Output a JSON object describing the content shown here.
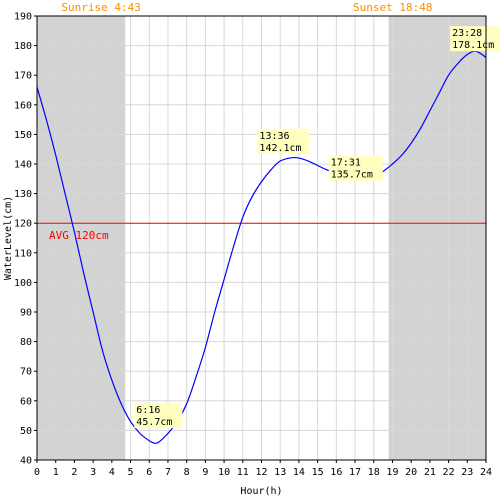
{
  "chart_data": {
    "type": "line",
    "title": "",
    "xlabel": "Hour(h)",
    "ylabel": "WaterLevel(cm)",
    "xlim": [
      0,
      24
    ],
    "ylim": [
      40,
      190
    ],
    "x_ticks": [
      0,
      1,
      2,
      3,
      4,
      5,
      6,
      7,
      8,
      9,
      10,
      11,
      12,
      13,
      14,
      15,
      16,
      17,
      18,
      19,
      20,
      21,
      22,
      23,
      24
    ],
    "y_ticks": [
      40,
      50,
      60,
      70,
      80,
      90,
      100,
      110,
      120,
      130,
      140,
      150,
      160,
      170,
      180,
      190
    ],
    "grid": true,
    "line_color": "#0000ff",
    "series": [
      {
        "x": [
          0,
          0.5,
          1,
          1.5,
          2,
          2.5,
          3,
          3.5,
          4,
          4.5,
          5,
          5.5,
          6,
          6.27,
          6.5,
          7,
          7.5,
          8,
          8.5,
          9,
          9.5,
          10,
          10.5,
          11,
          11.5,
          12,
          12.5,
          13,
          13.6,
          14,
          14.5,
          15,
          15.5,
          16,
          16.5,
          17,
          17.52,
          18,
          18.5,
          19,
          19.5,
          20,
          20.5,
          21,
          21.5,
          22,
          22.5,
          23,
          23.47,
          24
        ],
        "y": [
          166,
          155,
          143,
          130,
          117,
          103,
          90,
          77,
          67,
          59,
          53,
          49,
          46.5,
          45.7,
          46,
          49,
          53,
          59,
          68,
          78,
          90,
          101,
          112,
          122,
          129,
          134,
          138,
          141,
          142.1,
          142,
          141,
          139.5,
          138,
          137,
          136,
          135.8,
          135.7,
          136,
          137.5,
          140,
          143,
          147,
          152,
          158,
          164,
          170,
          174,
          177,
          178.1,
          176
        ]
      }
    ],
    "daylight": {
      "sunrise_hour": 4.717,
      "sunset_hour": 18.8
    },
    "night_color": "#d3d3d3",
    "sunrise_label": "Sunrise 4:43",
    "sunset_label": "Sunset 18:48",
    "sun_label_color": "#ff8c00",
    "average": {
      "value": 120,
      "label": "AVG 120cm",
      "color": "#ff0000"
    },
    "annotations": [
      {
        "x": 6.27,
        "y": 45.7,
        "time": "6:16",
        "value": "45.7cm"
      },
      {
        "x": 13.6,
        "y": 142.1,
        "time": "13:36",
        "value": "142.1cm"
      },
      {
        "x": 17.52,
        "y": 135.7,
        "time": "17:31",
        "value": "135.7cm"
      },
      {
        "x": 23.47,
        "y": 178.1,
        "time": "23:28",
        "value": "178.1cm"
      }
    ],
    "annotation_bg": "#ffffc0"
  }
}
